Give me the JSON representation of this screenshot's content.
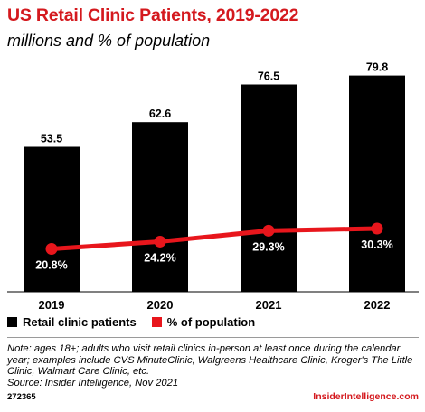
{
  "title": "US Retail Clinic Patients, 2019-2022",
  "subtitle": "millions and % of population",
  "chart_data": {
    "type": "bar",
    "categories": [
      "2019",
      "2020",
      "2021",
      "2022"
    ],
    "series": [
      {
        "name": "Retail clinic patients",
        "type": "bar",
        "values": [
          53.5,
          62.6,
          76.5,
          79.8
        ],
        "labels": [
          "53.5",
          "62.6",
          "76.5",
          "79.8"
        ],
        "color": "#000000"
      },
      {
        "name": "% of population",
        "type": "line",
        "values": [
          20.8,
          24.2,
          29.3,
          30.3
        ],
        "labels": [
          "20.8%",
          "24.2%",
          "29.3%",
          "30.3%"
        ],
        "color": "#e8161c"
      }
    ],
    "grid": false,
    "legend": "bottom-left"
  },
  "note": [
    "Note: ages 18+; adults who visit retail clinics in-person at least once during the calendar",
    "year; examples include CVS MinuteClinic, Walgreens Healthcare Clinic, Kroger's The Little",
    "Clinic, Walmart Care Clinic, etc.",
    "Source: Insider Intelligence, Nov 2021"
  ],
  "chart_code": "272365",
  "brand": "InsiderIntelligence.com"
}
